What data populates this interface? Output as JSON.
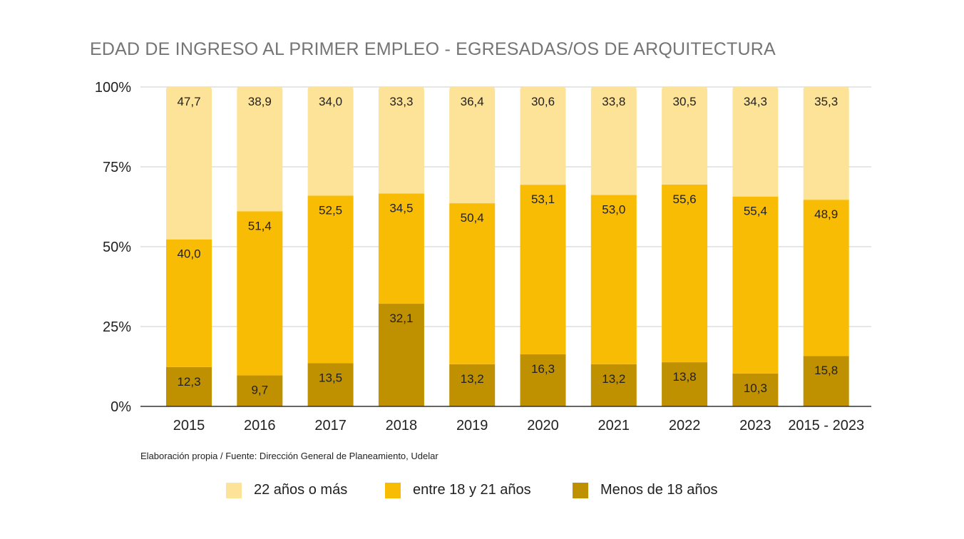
{
  "chart_data": {
    "type": "bar",
    "stacked": true,
    "normalized": true,
    "title": "EDAD DE INGRESO AL PRIMER EMPLEO - EGRESADAS/OS DE ARQUITECTURA",
    "xlabel": "",
    "ylabel": "",
    "ylim": [
      0,
      100
    ],
    "yticks": [
      "0%",
      "25%",
      "50%",
      "75%",
      "100%"
    ],
    "grid": true,
    "legend_position": "bottom",
    "categories": [
      "2015",
      "2016",
      "2017",
      "2018",
      "2019",
      "2020",
      "2021",
      "2022",
      "2023",
      "2015 - 2023"
    ],
    "series": [
      {
        "name": "Menos de 18 años",
        "color": "#bf9000",
        "values": [
          12.3,
          9.7,
          13.5,
          32.1,
          13.2,
          16.3,
          13.2,
          13.8,
          10.3,
          15.8
        ],
        "labels": [
          "12,3",
          "9,7",
          "13,5",
          "32,1",
          "13,2",
          "16,3",
          "13,2",
          "13,8",
          "10,3",
          "15,8"
        ]
      },
      {
        "name": "entre 18 y 21 años",
        "color": "#f9bc05",
        "values": [
          40.0,
          51.4,
          52.5,
          34.5,
          50.4,
          53.1,
          53.0,
          55.6,
          55.4,
          48.9
        ],
        "labels": [
          "40,0",
          "51,4",
          "52,5",
          "34,5",
          "50,4",
          "53,1",
          "53,0",
          "55,6",
          "55,4",
          "48,9"
        ]
      },
      {
        "name": "22 años o más",
        "color": "#fde398",
        "values": [
          47.7,
          38.9,
          34.0,
          33.3,
          36.4,
          30.6,
          33.8,
          30.5,
          34.3,
          35.3
        ],
        "labels": [
          "47,7",
          "38,9",
          "34,0",
          "33,3",
          "36,4",
          "30,6",
          "33,8",
          "30,5",
          "34,3",
          "35,3"
        ]
      }
    ],
    "legend_order": [
      "22 años o más",
      "entre 18 y 21 años",
      "Menos de 18 años"
    ]
  },
  "source_note": "Elaboración propia / Fuente: Dirección General de Planeamiento, Udelar",
  "legend": [
    {
      "label": "22 años o más",
      "color": "#fde398"
    },
    {
      "label": "entre 18 y 21 años",
      "color": "#f9bc05"
    },
    {
      "label": "Menos de 18 años",
      "color": "#bf9000"
    }
  ]
}
